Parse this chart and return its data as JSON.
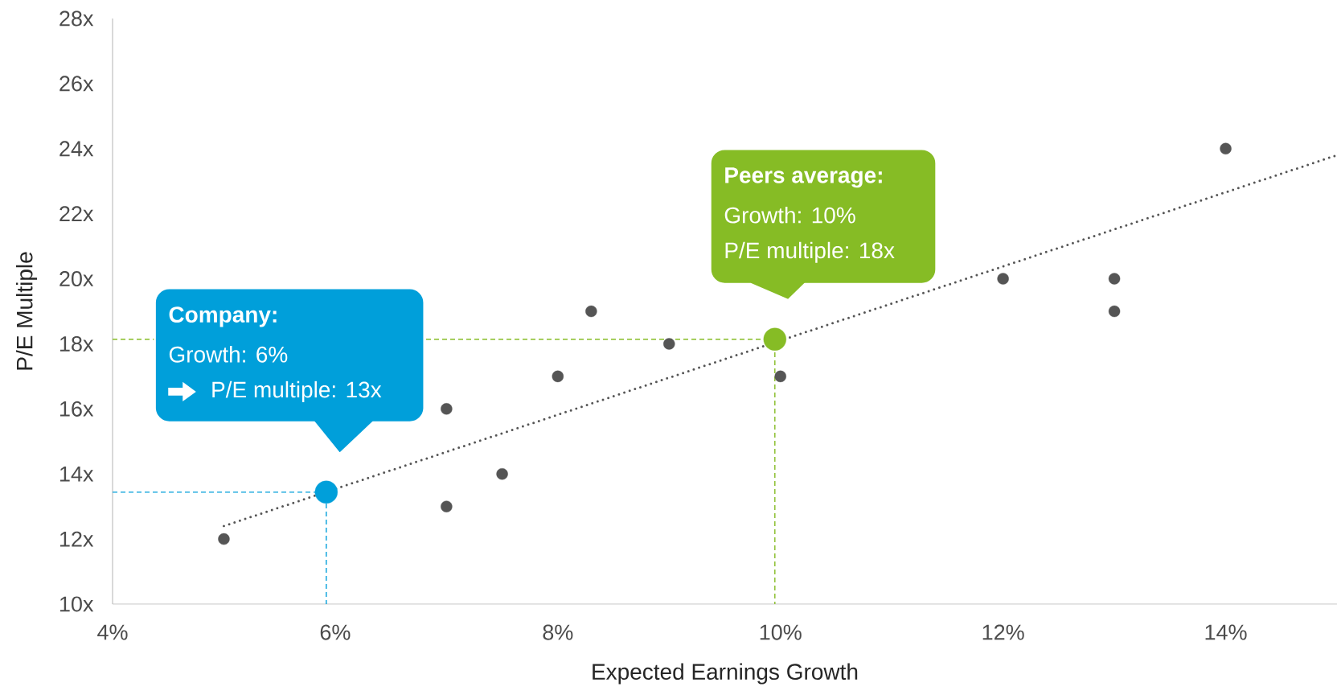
{
  "chart_data": {
    "type": "scatter",
    "xlabel": "Expected Earnings Growth",
    "ylabel": "P/E Multiple",
    "xlim": [
      4,
      15
    ],
    "ylim": [
      10,
      28
    ],
    "xticks": [
      {
        "value": 4,
        "label": "4%"
      },
      {
        "value": 6,
        "label": "6%"
      },
      {
        "value": 8,
        "label": "8%"
      },
      {
        "value": 10,
        "label": "10%"
      },
      {
        "value": 12,
        "label": "12%"
      },
      {
        "value": 14,
        "label": "14%"
      }
    ],
    "yticks": [
      {
        "value": 10,
        "label": "10x"
      },
      {
        "value": 12,
        "label": "12x"
      },
      {
        "value": 14,
        "label": "14x"
      },
      {
        "value": 16,
        "label": "16x"
      },
      {
        "value": 18,
        "label": "18x"
      },
      {
        "value": 20,
        "label": "20x"
      },
      {
        "value": 22,
        "label": "22x"
      },
      {
        "value": 24,
        "label": "24x"
      },
      {
        "value": 26,
        "label": "26x"
      },
      {
        "value": 28,
        "label": "28x"
      }
    ],
    "series": [
      {
        "type": "line",
        "line_style": "dashed",
        "marker": "none",
        "color": "#009fda",
        "x": [
          4,
          5.92,
          5.92
        ],
        "values": [
          13.44,
          13.44,
          10
        ]
      },
      {
        "type": "line",
        "line_style": "dashed",
        "marker": "none",
        "color": "#86bc25",
        "x": [
          4,
          9.95,
          9.95
        ],
        "values": [
          18.14,
          18.14,
          10
        ]
      },
      {
        "type": "line",
        "line_style": "dotted",
        "marker": "none",
        "color": "#555555",
        "x": [
          5,
          15
        ],
        "values": [
          12.4,
          23.8
        ]
      },
      {
        "marker": "circle",
        "color": "#555555",
        "x": [
          5,
          7,
          7,
          7.5,
          8,
          8.3,
          9,
          10,
          12,
          13,
          13,
          14
        ],
        "values": [
          12,
          16,
          13,
          14,
          17,
          19,
          18,
          17,
          20,
          20,
          19,
          24
        ]
      },
      {
        "marker": "circle",
        "color": "#009fda",
        "x": [
          5.92
        ],
        "values": [
          13.44
        ]
      },
      {
        "marker": "circle",
        "color": "#86bc25",
        "x": [
          9.95
        ],
        "values": [
          18.14
        ]
      }
    ],
    "annotations": [
      "Company:",
      "Growth: 6%",
      "P/E multiple: 13x",
      "Peers average:",
      "Growth: 10%",
      "P/E multiple: 18x"
    ]
  }
}
